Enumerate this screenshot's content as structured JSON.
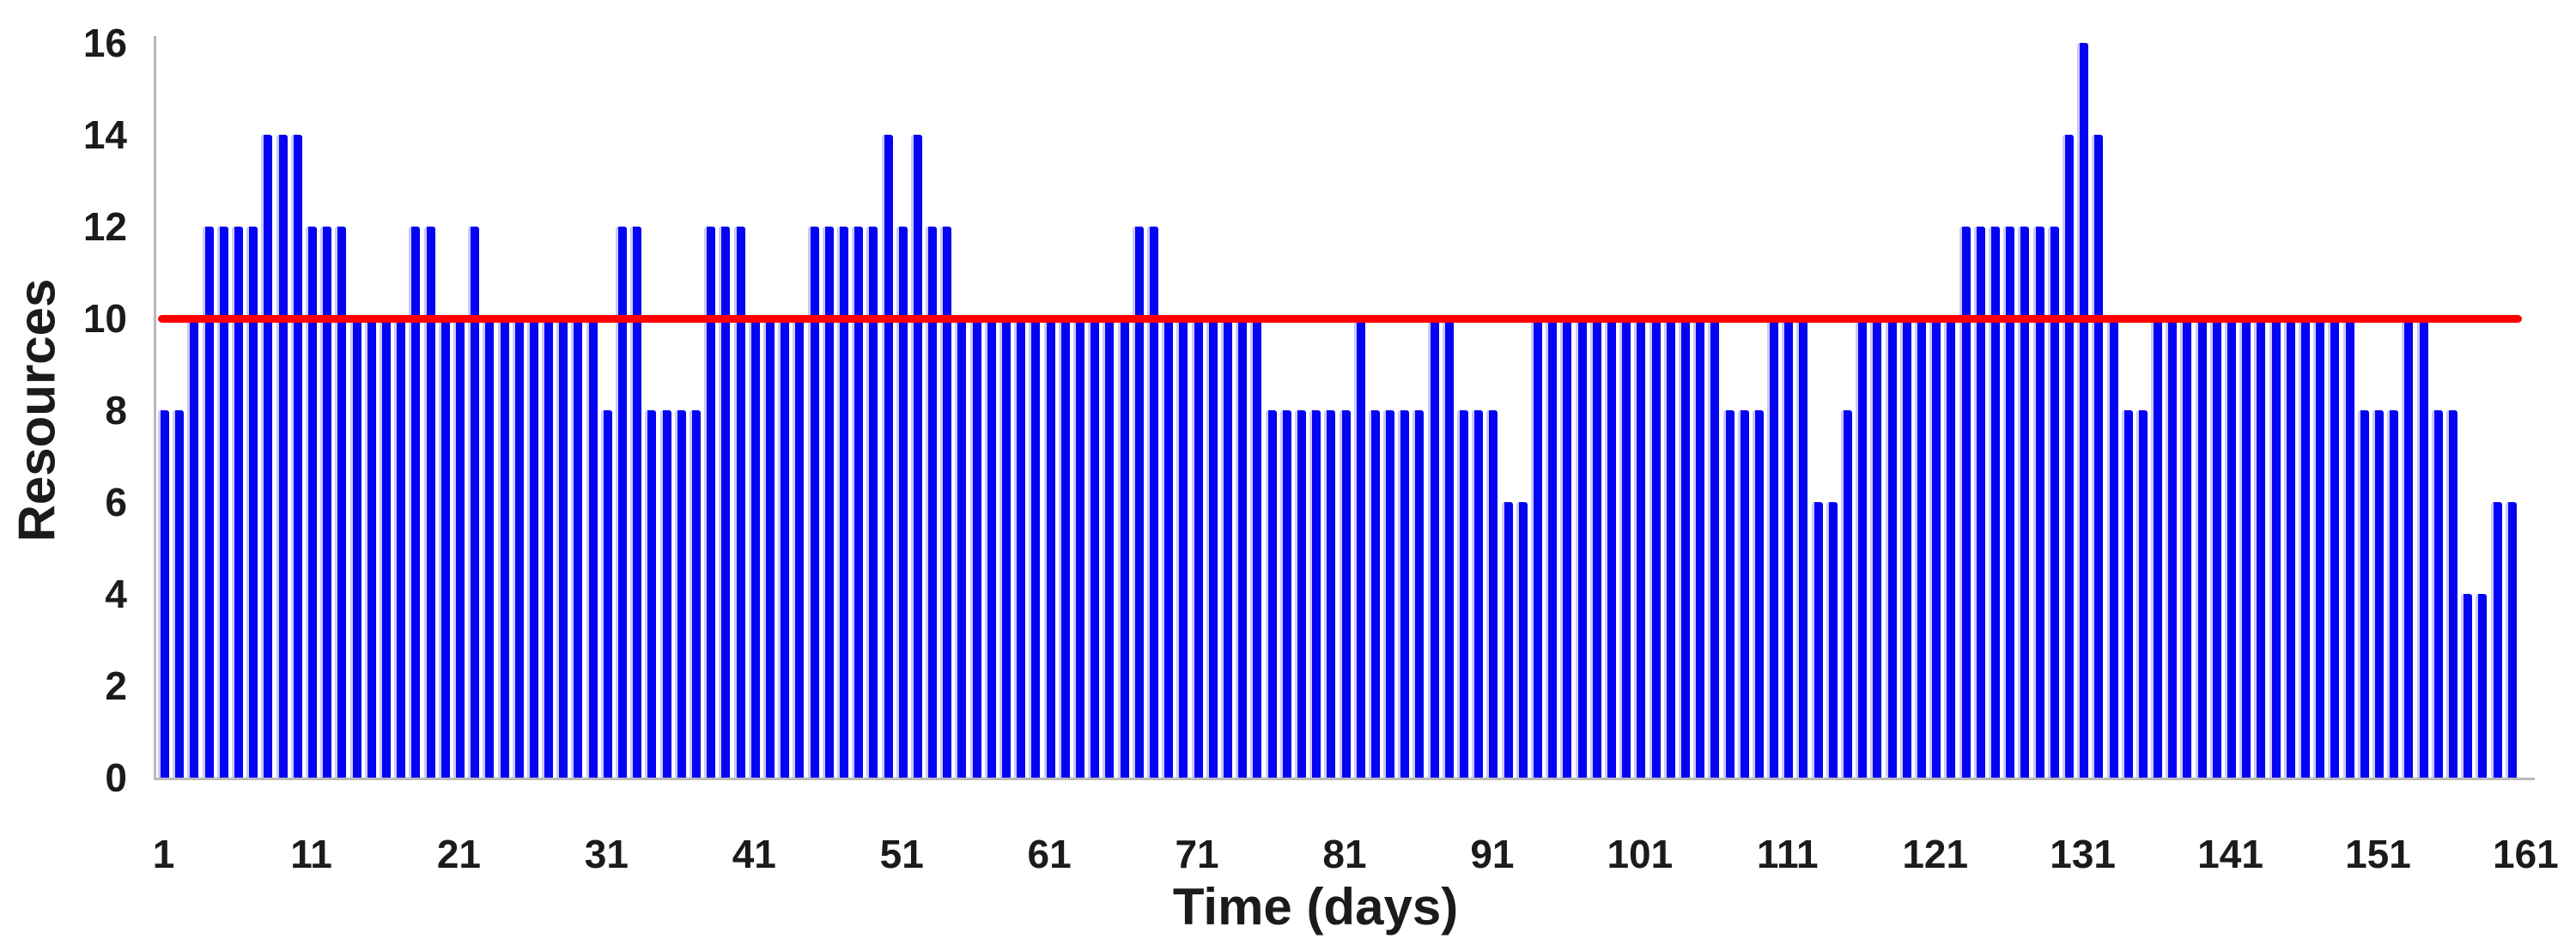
{
  "chart_data": {
    "type": "bar",
    "title": "",
    "xlabel": "Time (days)",
    "ylabel": "Resources",
    "x_start_day": 1,
    "x_axis_slots": 161,
    "x_ticks": [
      1,
      11,
      21,
      31,
      41,
      51,
      61,
      71,
      81,
      91,
      101,
      111,
      121,
      131,
      141,
      151,
      161
    ],
    "y_ticks": [
      0,
      2,
      4,
      6,
      8,
      10,
      12,
      14,
      16
    ],
    "ylim": [
      0,
      16
    ],
    "grid": false,
    "legend_position": "none",
    "threshold_line": {
      "value": 10,
      "meaning": "resource-limit-line"
    },
    "series": [
      {
        "name": "Resources",
        "values": [
          8,
          8,
          10,
          12,
          12,
          12,
          12,
          14,
          14,
          14,
          12,
          12,
          12,
          10,
          10,
          10,
          10,
          12,
          12,
          10,
          10,
          12,
          10,
          10,
          10,
          10,
          10,
          10,
          10,
          10,
          8,
          12,
          12,
          8,
          8,
          8,
          8,
          12,
          12,
          12,
          10,
          10,
          10,
          10,
          12,
          12,
          12,
          12,
          12,
          14,
          12,
          14,
          12,
          12,
          10,
          10,
          10,
          10,
          10,
          10,
          10,
          10,
          10,
          10,
          10,
          10,
          12,
          12,
          10,
          10,
          10,
          10,
          10,
          10,
          10,
          8,
          8,
          8,
          8,
          8,
          8,
          10,
          8,
          8,
          8,
          8,
          10,
          10,
          8,
          8,
          8,
          6,
          6,
          10,
          10,
          10,
          10,
          10,
          10,
          10,
          10,
          10,
          10,
          10,
          10,
          10,
          8,
          8,
          8,
          10,
          10,
          10,
          6,
          6,
          8,
          10,
          10,
          10,
          10,
          10,
          10,
          10,
          12,
          12,
          12,
          12,
          12,
          12,
          12,
          14,
          16,
          14,
          10,
          8,
          8,
          10,
          10,
          10,
          10,
          10,
          10,
          10,
          10,
          10,
          10,
          10,
          10,
          10,
          10,
          8,
          8,
          8,
          10,
          10,
          8,
          8,
          4,
          4,
          6,
          6
        ]
      }
    ]
  },
  "colors": {
    "bar_fill": "#0404f2",
    "bar_highlight": "#c9c9f8",
    "threshold": "#fb0000",
    "axis_line": "#b9b9b9",
    "text": "#1b1b1b",
    "background": "#ffffff"
  }
}
